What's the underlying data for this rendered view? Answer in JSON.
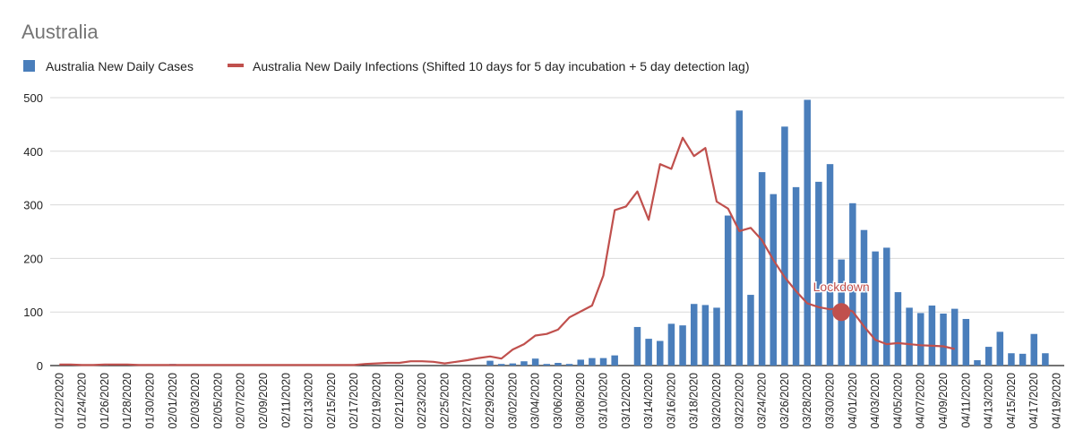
{
  "chart_data": {
    "type": "bar",
    "title": "Australia",
    "xlabel": "",
    "ylabel": "",
    "ylim": [
      0,
      500
    ],
    "yticks": [
      0,
      100,
      200,
      300,
      400,
      500
    ],
    "grid": true,
    "legend_position": "top-left",
    "colors": {
      "bars": "#4a7ebb",
      "line": "#c0504d",
      "grid": "#d9d9d9",
      "title": "#757575"
    },
    "categories": [
      "01/22/2020",
      "01/23/2020",
      "01/24/2020",
      "01/25/2020",
      "01/26/2020",
      "01/27/2020",
      "01/28/2020",
      "01/29/2020",
      "01/30/2020",
      "01/31/2020",
      "02/01/2020",
      "02/02/2020",
      "02/03/2020",
      "02/04/2020",
      "02/05/2020",
      "02/06/2020",
      "02/07/2020",
      "02/08/2020",
      "02/09/2020",
      "02/10/2020",
      "02/11/2020",
      "02/12/2020",
      "02/13/2020",
      "02/14/2020",
      "02/15/2020",
      "02/16/2020",
      "02/17/2020",
      "02/18/2020",
      "02/19/2020",
      "02/20/2020",
      "02/21/2020",
      "02/22/2020",
      "02/23/2020",
      "02/24/2020",
      "02/25/2020",
      "02/26/2020",
      "02/27/2020",
      "02/28/2020",
      "02/29/2020",
      "03/01/2020",
      "03/02/2020",
      "03/03/2020",
      "03/04/2020",
      "03/05/2020",
      "03/06/2020",
      "03/07/2020",
      "03/08/2020",
      "03/09/2020",
      "03/10/2020",
      "03/11/2020",
      "03/12/2020",
      "03/13/2020",
      "03/14/2020",
      "03/15/2020",
      "03/16/2020",
      "03/17/2020",
      "03/18/2020",
      "03/19/2020",
      "03/20/2020",
      "03/21/2020",
      "03/22/2020",
      "03/23/2020",
      "03/24/2020",
      "03/25/2020",
      "03/26/2020",
      "03/27/2020",
      "03/28/2020",
      "03/29/2020",
      "03/30/2020",
      "03/31/2020",
      "04/01/2020",
      "04/02/2020",
      "04/03/2020",
      "04/04/2020",
      "04/05/2020",
      "04/06/2020",
      "04/07/2020",
      "04/08/2020",
      "04/09/2020",
      "04/10/2020",
      "04/11/2020",
      "04/12/2020",
      "04/13/2020",
      "04/14/2020",
      "04/15/2020",
      "04/16/2020",
      "04/17/2020",
      "04/18/2020",
      "04/19/2020"
    ],
    "xtick_labels": [
      "01/22/2020",
      "01/24/2020",
      "01/26/2020",
      "01/28/2020",
      "01/30/2020",
      "02/01/2020",
      "02/03/2020",
      "02/05/2020",
      "02/07/2020",
      "02/09/2020",
      "02/11/2020",
      "02/13/2020",
      "02/15/2020",
      "02/17/2020",
      "02/19/2020",
      "02/21/2020",
      "02/23/2020",
      "02/25/2020",
      "02/27/2020",
      "02/29/2020",
      "03/02/2020",
      "03/04/2020",
      "03/06/2020",
      "03/08/2020",
      "03/10/2020",
      "03/12/2020",
      "03/14/2020",
      "03/16/2020",
      "03/18/2020",
      "03/20/2020",
      "03/22/2020",
      "03/24/2020",
      "03/26/2020",
      "03/28/2020",
      "03/30/2020",
      "04/01/2020",
      "04/03/2020",
      "04/05/2020",
      "04/07/2020",
      "04/09/2020",
      "04/11/2020",
      "04/13/2020",
      "04/15/2020",
      "04/17/2020",
      "04/19/2020"
    ],
    "series": [
      {
        "name": "Australia New Daily Cases",
        "type": "bar",
        "values": [
          0,
          0,
          0,
          0,
          1,
          0,
          0,
          0,
          2,
          0,
          3,
          0,
          1,
          0,
          0,
          0,
          0,
          0,
          0,
          0,
          0,
          0,
          0,
          0,
          0,
          0,
          0,
          0,
          0,
          0,
          0,
          0,
          0,
          0,
          0,
          0,
          0,
          0,
          9,
          3,
          4,
          8,
          13,
          3,
          5,
          3,
          11,
          14,
          14,
          19,
          0,
          72,
          50,
          46,
          78,
          75,
          115,
          113,
          108,
          280,
          476,
          132,
          361,
          320,
          446,
          333,
          496,
          343,
          376,
          198,
          303,
          253,
          213,
          220,
          137,
          108,
          98,
          112,
          97,
          106,
          87,
          10,
          35,
          63,
          23,
          22,
          59,
          23,
          0
        ]
      },
      {
        "name": "Australia New Daily Infections (Shifted 10 days for 5 day incubation + 5 day detection lag)",
        "type": "line",
        "values": [
          2,
          2,
          1,
          1,
          2,
          2,
          2,
          1,
          1,
          1,
          1,
          1,
          1,
          1,
          1,
          1,
          1,
          1,
          1,
          1,
          1,
          1,
          1,
          1,
          1,
          1,
          1,
          3,
          4,
          5,
          5,
          8,
          8,
          7,
          4,
          7,
          10,
          14,
          17,
          13,
          30,
          40,
          56,
          59,
          67,
          90,
          101,
          112,
          168,
          290,
          297,
          325,
          272,
          376,
          367,
          425,
          391,
          406,
          306,
          293,
          251,
          257,
          234,
          197,
          165,
          139,
          116,
          109,
          105,
          108,
          101,
          73,
          48,
          40,
          42,
          40,
          38,
          37,
          36,
          31,
          null,
          null,
          null,
          null,
          null,
          null,
          null,
          null,
          null
        ]
      }
    ],
    "annotations": [
      {
        "text": "Lockdown",
        "x": "03/31/2020",
        "y": 100
      }
    ]
  }
}
